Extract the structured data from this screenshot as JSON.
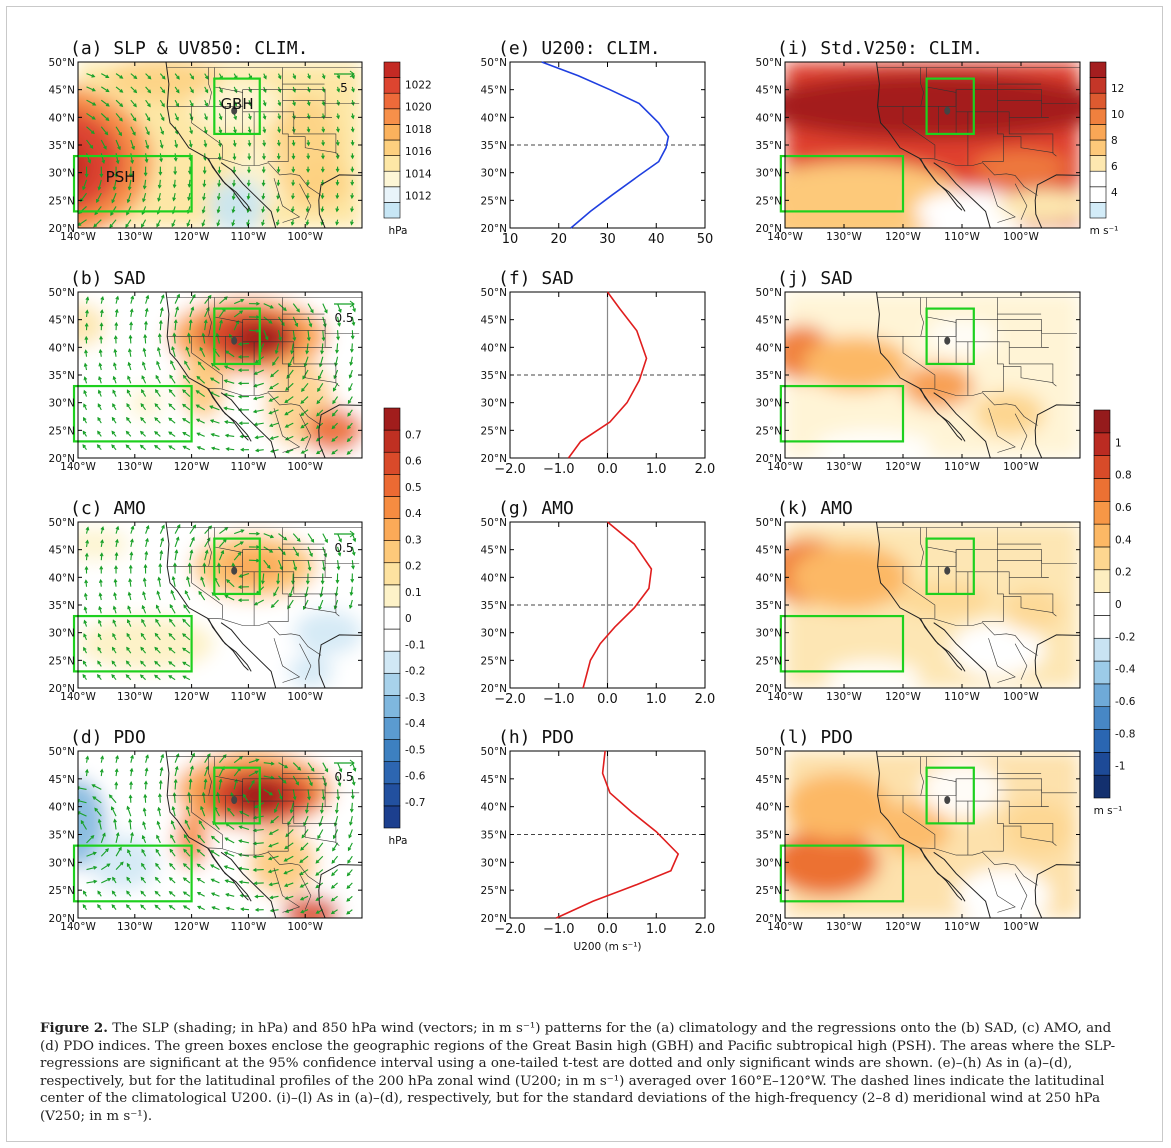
{
  "figure": {
    "caption_label": "Figure 2.",
    "caption_text": "The SLP (shading; in hPa) and 850 hPa wind (vectors; in m s⁻¹) patterns for the (a) climatology and the regressions onto the (b) SAD, (c) AMO, and (d) PDO indices. The green boxes enclose the geographic regions of the Great Basin high (GBH) and Pacific subtropical high (PSH). The areas where the SLP-regressions are significant at the 95% confidence interval using a one-tailed t-test are dotted and only significant winds are shown. (e)–(h) As in (a)–(d), respectively, but for the latitudinal profiles of the 200 hPa zonal wind (U200; in m s⁻¹) averaged over 160°E–120°W. The dashed lines indicate the latitudinal center of the climatological U200. (i)–(l) As in (a)–(d), respectively, but for the standard deviations of the high-frequency (2–8 d) meridional wind at 250 hPa (V250; in m s⁻¹)."
  },
  "maps": {
    "lon_labels": [
      "140°W",
      "130°W",
      "120°W",
      "110°W",
      "100°W"
    ],
    "lat_labels": [
      "20°N",
      "25°N",
      "30°N",
      "35°N",
      "40°N",
      "45°N",
      "50°N"
    ],
    "box_labels": {
      "gbh": "GBH",
      "psh": "PSH"
    }
  },
  "panels": {
    "a": {
      "title": "(a) SLP & UV850: CLIM.",
      "ref_vector": "5"
    },
    "b": {
      "title": "(b) SAD",
      "ref_vector": "0.5"
    },
    "c": {
      "title": "(c) AMO",
      "ref_vector": "0.5"
    },
    "d": {
      "title": "(d) PDO",
      "ref_vector": "0.5"
    },
    "e": {
      "title": "(e) U200: CLIM."
    },
    "f": {
      "title": "(f) SAD"
    },
    "g": {
      "title": "(g) AMO"
    },
    "h": {
      "title": "(h) PDO"
    },
    "i": {
      "title": "(i) Std.V250: CLIM."
    },
    "j": {
      "title": "(j) SAD"
    },
    "k": {
      "title": "(k) AMO"
    },
    "l": {
      "title": "(l) PDO"
    }
  },
  "colorbars": {
    "slp_clim": {
      "ticks": [
        "1022",
        "1020",
        "1018",
        "1016",
        "1014",
        "1012"
      ],
      "unit": "hPa",
      "colors": [
        "#c7e6f5",
        "#e9f4fa",
        "#fdf6d6",
        "#fde7a6",
        "#fdd07f",
        "#fbb25d",
        "#f7904a",
        "#ee6a3a",
        "#dd4530",
        "#c42a24"
      ]
    },
    "slp_reg": {
      "ticks": [
        "0.7",
        "0.6",
        "0.5",
        "0.4",
        "0.3",
        "0.2",
        "0.1",
        "0",
        "-0.1",
        "-0.2",
        "-0.3",
        "-0.4",
        "-0.5",
        "-0.6",
        "-0.7"
      ],
      "unit": "hPa",
      "colors": [
        "#1c3f8e",
        "#22509f",
        "#2d66b1",
        "#3d80c0",
        "#5b9bd0",
        "#7fb7de",
        "#a8d2eb",
        "#d1e8f5",
        "#ffffff",
        "#ffffff",
        "#fdf2c8",
        "#fde2a0",
        "#fdc97a",
        "#fbaa58",
        "#f68c41",
        "#ec6a33",
        "#d94a2a",
        "#bf3022",
        "#a11d1c"
      ]
    },
    "v250_clim": {
      "ticks": [
        "12",
        "10",
        "8",
        "6",
        "4"
      ],
      "unit": "m s⁻¹",
      "colors": [
        "#d3ecf8",
        "#ffffff",
        "#ffffff",
        "#fde8b0",
        "#fdc97a",
        "#faa756",
        "#f0803e",
        "#dd5a30",
        "#c43628",
        "#a41e1f"
      ]
    },
    "v250_reg": {
      "ticks": [
        "1",
        "0.8",
        "0.6",
        "0.4",
        "0.2",
        "0",
        "-0.2",
        "-0.4",
        "-0.6",
        "-0.8",
        "-1"
      ],
      "unit": "m s⁻¹",
      "colors": [
        "#13306e",
        "#1d4a97",
        "#2a66b2",
        "#4787c5",
        "#6faad8",
        "#9ccbe8",
        "#c9e3f3",
        "#ffffff",
        "#ffffff",
        "#fdeec0",
        "#fdd690",
        "#fcb865",
        "#f79746",
        "#ec7133",
        "#d84b29",
        "#bb2b22",
        "#951b1c"
      ]
    }
  },
  "chart_data": [
    {
      "type": "line",
      "panel": "e",
      "title": "(e) U200: CLIM.",
      "xlim": [
        10,
        50
      ],
      "xticks": [
        "10",
        "20",
        "30",
        "40",
        "50"
      ],
      "ylim": [
        20,
        50
      ],
      "yticks": [
        "20°N",
        "25°N",
        "30°N",
        "35°N",
        "40°N",
        "45°N",
        "50°N"
      ],
      "series": [
        {
          "color": "#1f3fe0",
          "points": [
            [
              16.5,
              50
            ],
            [
              24,
              47.5
            ],
            [
              30.5,
              45
            ],
            [
              36.5,
              42.5
            ],
            [
              40.5,
              39
            ],
            [
              42.5,
              36.5
            ],
            [
              42,
              34.5
            ],
            [
              40.5,
              32
            ],
            [
              36.5,
              29.5
            ],
            [
              31,
              26
            ],
            [
              26.5,
              23
            ],
            [
              22.5,
              20
            ]
          ]
        }
      ],
      "reference_line_lat": 35
    },
    {
      "type": "line",
      "panel": "f",
      "title": "(f) SAD",
      "xlim": [
        -2,
        2
      ],
      "xticks": [
        "−2.0",
        "−1.0",
        "0.0",
        "1.0",
        "2.0"
      ],
      "ylim": [
        20,
        50
      ],
      "yticks": [
        "20°N",
        "25°N",
        "30°N",
        "35°N",
        "40°N",
        "45°N",
        "50°N"
      ],
      "series": [
        {
          "color": "#e01e1e",
          "points": [
            [
              0,
              50
            ],
            [
              0.25,
              47
            ],
            [
              0.6,
              43
            ],
            [
              0.8,
              38
            ],
            [
              0.65,
              34
            ],
            [
              0.4,
              30
            ],
            [
              0.05,
              26.5
            ],
            [
              -0.55,
              23
            ],
            [
              -0.8,
              20
            ]
          ]
        }
      ],
      "reference_line_lat": 35
    },
    {
      "type": "line",
      "panel": "g",
      "title": "(g) AMO",
      "xlim": [
        -2,
        2
      ],
      "xticks": [
        "−2.0",
        "−1.0",
        "0.0",
        "1.0",
        "2.0"
      ],
      "ylim": [
        20,
        50
      ],
      "yticks": [
        "20°N",
        "25°N",
        "30°N",
        "35°N",
        "40°N",
        "45°N",
        "50°N"
      ],
      "series": [
        {
          "color": "#e01e1e",
          "points": [
            [
              0,
              50
            ],
            [
              0.55,
              46
            ],
            [
              0.9,
              41.5
            ],
            [
              0.85,
              38
            ],
            [
              0.55,
              34.5
            ],
            [
              0.15,
              31
            ],
            [
              -0.15,
              28
            ],
            [
              -0.35,
              25
            ],
            [
              -0.5,
              20
            ]
          ]
        }
      ],
      "reference_line_lat": 35
    },
    {
      "type": "line",
      "panel": "h",
      "title": "(h) PDO",
      "xlabel": "U200 (m s⁻¹)",
      "xlim": [
        -2,
        2
      ],
      "xticks": [
        "−2.0",
        "−1.0",
        "0.0",
        "1.0",
        "2.0"
      ],
      "ylim": [
        20,
        50
      ],
      "yticks": [
        "20°N",
        "25°N",
        "30°N",
        "35°N",
        "40°N",
        "45°N",
        "50°N"
      ],
      "series": [
        {
          "color": "#e01e1e",
          "points": [
            [
              -0.05,
              50
            ],
            [
              -0.1,
              46
            ],
            [
              0.05,
              42.5
            ],
            [
              0.5,
              39
            ],
            [
              1.0,
              35.5
            ],
            [
              1.45,
              31.5
            ],
            [
              1.3,
              28.5
            ],
            [
              0.6,
              26
            ],
            [
              -0.3,
              23
            ],
            [
              -1.05,
              20
            ]
          ]
        }
      ],
      "reference_line_lat": 35
    }
  ]
}
